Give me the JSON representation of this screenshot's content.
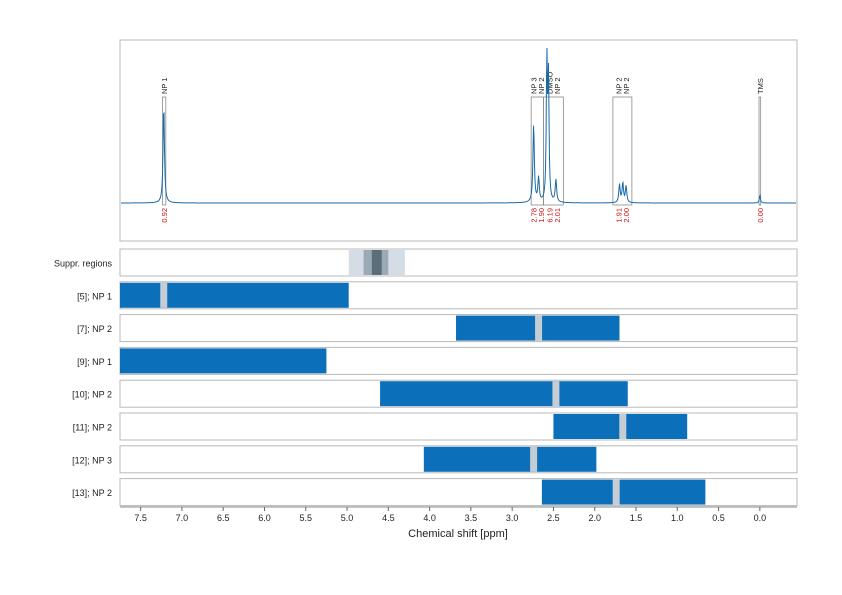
{
  "chart_data": {
    "type": "nmr-spectrum-with-fit-regions",
    "xlabel": "Chemical shift [ppm]",
    "x_reversed": true,
    "xlim": [
      7.75,
      -0.45
    ],
    "x_ticks": [
      "7.5",
      "7.0",
      "6.5",
      "6.0",
      "5.5",
      "5.0",
      "4.5",
      "4.0",
      "3.5",
      "3.0",
      "2.5",
      "2.0",
      "1.5",
      "1.0",
      "0.5",
      "0.0"
    ],
    "grid": true,
    "spectrum": {
      "color": "#1a6aa6",
      "peaks": [
        {
          "ppm": 7.22,
          "height": 0.65,
          "width": 0.01
        },
        {
          "ppm": 2.74,
          "height": 0.52,
          "width": 0.01
        },
        {
          "ppm": 2.68,
          "height": 0.16,
          "width": 0.01
        },
        {
          "ppm": 2.58,
          "height": 0.95,
          "width": 0.008
        },
        {
          "ppm": 2.56,
          "height": 0.8,
          "width": 0.008
        },
        {
          "ppm": 2.47,
          "height": 0.15,
          "width": 0.01
        },
        {
          "ppm": 1.7,
          "height": 0.12,
          "width": 0.01
        },
        {
          "ppm": 1.66,
          "height": 0.13,
          "width": 0.01
        },
        {
          "ppm": 1.62,
          "height": 0.11,
          "width": 0.01
        },
        {
          "ppm": 0.0,
          "height": 0.05,
          "width": 0.008
        }
      ]
    },
    "peak_annotations": [
      {
        "labels": [
          "NP 1"
        ],
        "integrals": [
          "0.92"
        ],
        "box_ppm": [
          7.235,
          7.195
        ]
      },
      {
        "labels": [
          "NP 3",
          "NP 2"
        ],
        "integrals": [
          "2.78",
          "1.90"
        ],
        "box_ppm": [
          2.77,
          2.62
        ]
      },
      {
        "labels": [
          "DMSO",
          "NP 2"
        ],
        "integrals": [
          "6.19",
          "2.01"
        ],
        "box_ppm": [
          2.62,
          2.38
        ]
      },
      {
        "labels": [
          "NP 2",
          "NP 2"
        ],
        "integrals": [
          "1.91",
          "2.00"
        ],
        "box_ppm": [
          1.78,
          1.55
        ]
      },
      {
        "labels": [
          "TMS"
        ],
        "integrals": [
          "0.00"
        ],
        "box_ppm": [
          0.01,
          -0.01
        ]
      }
    ],
    "suppression": {
      "label": "Suppr. regions",
      "bands": [
        {
          "from": 4.98,
          "to": 4.3,
          "level": 1
        },
        {
          "from": 4.8,
          "to": 4.5,
          "level": 2
        },
        {
          "from": 4.7,
          "to": 4.58,
          "level": 3
        }
      ]
    },
    "fit_regions": [
      {
        "label": "[5]; NP 1",
        "from": 7.75,
        "to": 4.98,
        "gaps": [
          7.22
        ]
      },
      {
        "label": "[7]; NP 2",
        "from": 3.68,
        "to": 1.7,
        "gaps": [
          2.68
        ]
      },
      {
        "label": "[9]; NP 1",
        "from": 7.75,
        "to": 5.25,
        "gaps": []
      },
      {
        "label": "[10]; NP 2",
        "from": 4.6,
        "to": 1.6,
        "gaps": [
          2.47
        ]
      },
      {
        "label": "[11]; NP 2",
        "from": 2.5,
        "to": 0.88,
        "gaps": [
          1.66
        ]
      },
      {
        "label": "[12]; NP 3",
        "from": 4.07,
        "to": 1.98,
        "gaps": [
          2.74
        ]
      },
      {
        "label": "[13]; NP 2",
        "from": 2.64,
        "to": 0.66,
        "gaps": [
          1.74
        ]
      }
    ],
    "colors": {
      "bar": "#0b6fba",
      "gap": "#c4ccd4",
      "frame": "#b8b8b8",
      "integral_text": "#cc1111",
      "grid": "#c8c8c8",
      "suppr_1": "#d4dde6",
      "suppr_2": "#9aaab6",
      "suppr_3": "#5c6e7a"
    }
  }
}
